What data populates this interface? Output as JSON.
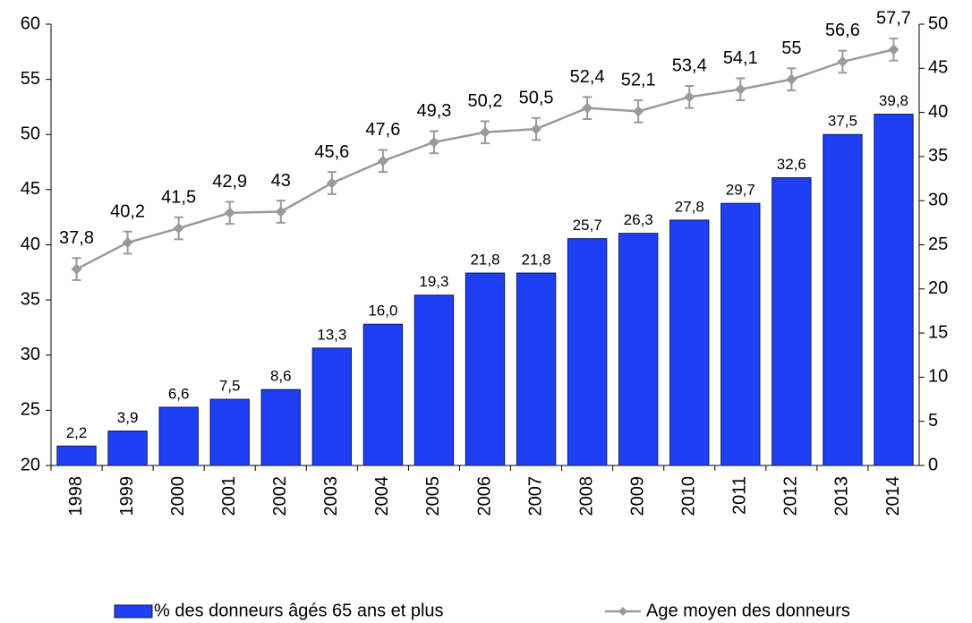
{
  "chart_data": {
    "type": "bar",
    "categories": [
      "1998",
      "1999",
      "2000",
      "2001",
      "2002",
      "2003",
      "2004",
      "2005",
      "2006",
      "2007",
      "2008",
      "2009",
      "2010",
      "2011",
      "2012",
      "2013",
      "2014"
    ],
    "series": [
      {
        "name": "% des donneurs âgés 65 ans et plus",
        "type": "bar",
        "axis": "y2",
        "color": "#1f3ff5",
        "values": [
          2.2,
          3.9,
          6.6,
          7.5,
          8.6,
          13.3,
          16.0,
          19.3,
          21.8,
          21.8,
          25.7,
          26.3,
          27.8,
          29.7,
          32.6,
          37.5,
          39.8
        ],
        "value_labels": [
          "2,2",
          "3,9",
          "6,6",
          "7,5",
          "8,6",
          "13,3",
          "16,0",
          "19,3",
          "21,8",
          "21,8",
          "25,7",
          "26,3",
          "27,8",
          "29,7",
          "32,6",
          "37,5",
          "39,8"
        ]
      },
      {
        "name": "Age moyen des donneurs",
        "type": "line",
        "axis": "y",
        "color": "#9a9a9a",
        "values": [
          37.8,
          40.2,
          41.5,
          42.9,
          43,
          45.6,
          47.6,
          49.3,
          50.2,
          50.5,
          52.4,
          52.1,
          53.4,
          54.1,
          55,
          56.6,
          57.7
        ],
        "errors": [
          1,
          1,
          1,
          1,
          1,
          1,
          1,
          1,
          1,
          1,
          1,
          1,
          1,
          1,
          1,
          1,
          1
        ],
        "value_labels": [
          "37,8",
          "40,2",
          "41,5",
          "42,9",
          "43",
          "45,6",
          "47,6",
          "49,3",
          "50,2",
          "50,5",
          "52,4",
          "52,1",
          "53,4",
          "54,1",
          "55",
          "56,6",
          "57,7"
        ]
      }
    ],
    "ylim": [
      20,
      60
    ],
    "yticks": [
      20,
      25,
      30,
      35,
      40,
      45,
      50,
      55,
      60
    ],
    "y2lim": [
      0,
      50
    ],
    "y2ticks": [
      0,
      5,
      10,
      15,
      20,
      25,
      30,
      35,
      40,
      45,
      50
    ],
    "grid": false,
    "legend": "bottom"
  }
}
